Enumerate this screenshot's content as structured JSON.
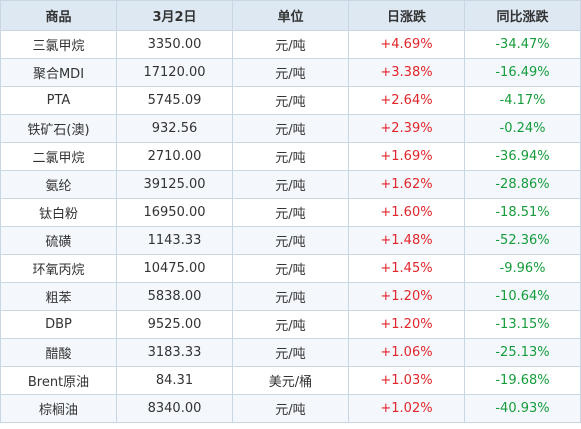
{
  "table": {
    "headers": [
      "商品",
      "3月2日",
      "单位",
      "日涨跌",
      "同比涨跌"
    ],
    "rows": [
      [
        "三氯甲烷",
        "3350.00",
        "元/吨",
        "+4.69%",
        "-34.47%"
      ],
      [
        "聚合MDI",
        "17120.00",
        "元/吨",
        "+3.38%",
        "-16.49%"
      ],
      [
        "PTA",
        "5745.09",
        "元/吨",
        "+2.64%",
        "-4.17%"
      ],
      [
        "铁矿石(澳)",
        "932.56",
        "元/吨",
        "+2.39%",
        "-0.24%"
      ],
      [
        "二氯甲烷",
        "2710.00",
        "元/吨",
        "+1.69%",
        "-36.94%"
      ],
      [
        "氨纶",
        "39125.00",
        "元/吨",
        "+1.62%",
        "-28.86%"
      ],
      [
        "钛白粉",
        "16950.00",
        "元/吨",
        "+1.60%",
        "-18.51%"
      ],
      [
        "硫磺",
        "1143.33",
        "元/吨",
        "+1.48%",
        "-52.36%"
      ],
      [
        "环氧丙烷",
        "10475.00",
        "元/吨",
        "+1.45%",
        "-9.96%"
      ],
      [
        "粗苯",
        "5838.00",
        "元/吨",
        "+1.20%",
        "-10.64%"
      ],
      [
        "DBP",
        "9525.00",
        "元/吨",
        "+1.20%",
        "-13.15%"
      ],
      [
        "醋酸",
        "3183.33",
        "元/吨",
        "+1.06%",
        "-25.13%"
      ],
      [
        "Brent原油",
        "84.31",
        "美元/桶",
        "+1.03%",
        "-19.68%"
      ],
      [
        "棕榈油",
        "8340.00",
        "元/吨",
        "+1.02%",
        "-40.93%"
      ]
    ]
  },
  "colors": {
    "header_bg": "#dde8f3",
    "up": "#e0252b",
    "down": "#169c3c",
    "border": "#c9d6e3"
  }
}
